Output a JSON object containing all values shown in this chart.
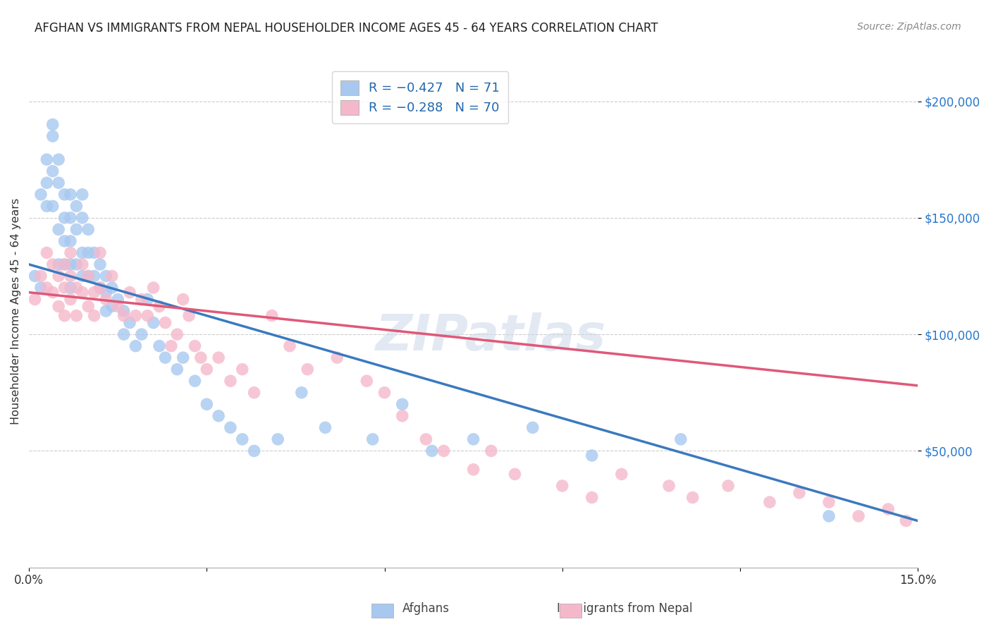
{
  "title": "AFGHAN VS IMMIGRANTS FROM NEPAL HOUSEHOLDER INCOME AGES 45 - 64 YEARS CORRELATION CHART",
  "source": "Source: ZipAtlas.com",
  "ylabel": "Householder Income Ages 45 - 64 years",
  "background_color": "#ffffff",
  "grid_color": "#cccccc",
  "afghan_color": "#a8c8f0",
  "nepal_color": "#f5b8cb",
  "trendline_afghan_color": "#3a7abf",
  "trendline_nepal_color": "#e05878",
  "xmin": 0.0,
  "xmax": 0.15,
  "ymin": 0,
  "ymax": 220000,
  "yticks": [
    50000,
    100000,
    150000,
    200000
  ],
  "ytick_labels": [
    "$50,000",
    "$100,000",
    "$150,000",
    "$200,000"
  ],
  "watermark_text": "ZIPatlas",
  "legend_afghan_label": "R = -0.427   N = 71",
  "legend_nepal_label": "R = -0.288   N = 70",
  "afghan_x": [
    0.001,
    0.002,
    0.002,
    0.003,
    0.003,
    0.003,
    0.004,
    0.004,
    0.004,
    0.004,
    0.005,
    0.005,
    0.005,
    0.005,
    0.006,
    0.006,
    0.006,
    0.006,
    0.007,
    0.007,
    0.007,
    0.007,
    0.007,
    0.008,
    0.008,
    0.008,
    0.009,
    0.009,
    0.009,
    0.009,
    0.01,
    0.01,
    0.01,
    0.011,
    0.011,
    0.012,
    0.012,
    0.013,
    0.013,
    0.013,
    0.014,
    0.014,
    0.015,
    0.016,
    0.016,
    0.017,
    0.018,
    0.019,
    0.02,
    0.021,
    0.022,
    0.023,
    0.025,
    0.026,
    0.028,
    0.03,
    0.032,
    0.034,
    0.036,
    0.038,
    0.042,
    0.046,
    0.05,
    0.058,
    0.063,
    0.068,
    0.075,
    0.085,
    0.095,
    0.11,
    0.135
  ],
  "afghan_y": [
    125000,
    160000,
    120000,
    175000,
    165000,
    155000,
    190000,
    185000,
    170000,
    155000,
    175000,
    165000,
    145000,
    130000,
    160000,
    150000,
    140000,
    130000,
    160000,
    150000,
    140000,
    130000,
    120000,
    155000,
    145000,
    130000,
    160000,
    150000,
    135000,
    125000,
    145000,
    135000,
    125000,
    135000,
    125000,
    130000,
    120000,
    125000,
    118000,
    110000,
    120000,
    112000,
    115000,
    110000,
    100000,
    105000,
    95000,
    100000,
    115000,
    105000,
    95000,
    90000,
    85000,
    90000,
    80000,
    70000,
    65000,
    60000,
    55000,
    50000,
    55000,
    75000,
    60000,
    55000,
    70000,
    50000,
    55000,
    60000,
    48000,
    55000,
    22000
  ],
  "nepal_x": [
    0.001,
    0.002,
    0.003,
    0.003,
    0.004,
    0.004,
    0.005,
    0.005,
    0.006,
    0.006,
    0.006,
    0.007,
    0.007,
    0.007,
    0.008,
    0.008,
    0.009,
    0.009,
    0.01,
    0.01,
    0.011,
    0.011,
    0.012,
    0.012,
    0.013,
    0.014,
    0.015,
    0.016,
    0.017,
    0.018,
    0.019,
    0.02,
    0.021,
    0.022,
    0.023,
    0.024,
    0.025,
    0.026,
    0.027,
    0.028,
    0.029,
    0.03,
    0.032,
    0.034,
    0.036,
    0.038,
    0.041,
    0.044,
    0.047,
    0.052,
    0.057,
    0.06,
    0.063,
    0.067,
    0.07,
    0.075,
    0.078,
    0.082,
    0.09,
    0.095,
    0.1,
    0.108,
    0.112,
    0.118,
    0.125,
    0.13,
    0.135,
    0.14,
    0.145,
    0.148
  ],
  "nepal_y": [
    115000,
    125000,
    135000,
    120000,
    130000,
    118000,
    125000,
    112000,
    130000,
    120000,
    108000,
    135000,
    125000,
    115000,
    120000,
    108000,
    130000,
    118000,
    125000,
    112000,
    118000,
    108000,
    135000,
    120000,
    115000,
    125000,
    112000,
    108000,
    118000,
    108000,
    115000,
    108000,
    120000,
    112000,
    105000,
    95000,
    100000,
    115000,
    108000,
    95000,
    90000,
    85000,
    90000,
    80000,
    85000,
    75000,
    108000,
    95000,
    85000,
    90000,
    80000,
    75000,
    65000,
    55000,
    50000,
    42000,
    50000,
    40000,
    35000,
    30000,
    40000,
    35000,
    30000,
    35000,
    28000,
    32000,
    28000,
    22000,
    25000,
    20000
  ],
  "afghan_trend_y0": 130000,
  "afghan_trend_y1": 20000,
  "nepal_trend_y0": 118000,
  "nepal_trend_y1": 78000
}
